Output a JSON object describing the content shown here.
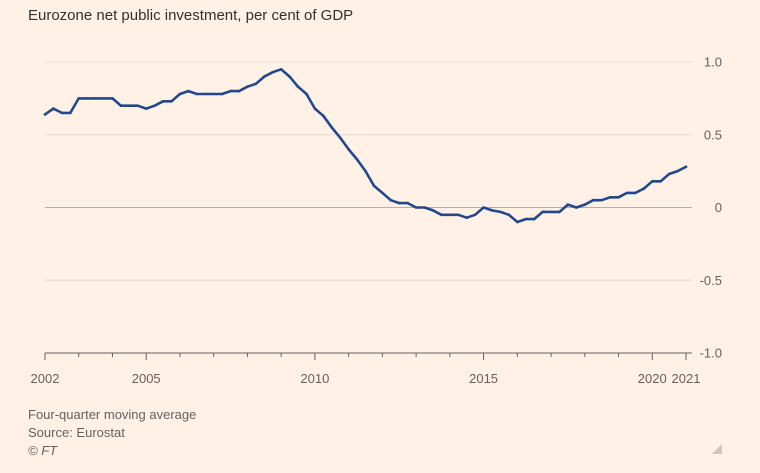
{
  "chart_data": {
    "type": "line",
    "title": "Eurozone net public investment, per cent of GDP",
    "xlabel": "",
    "ylabel": "",
    "xlim": [
      2002,
      2021
    ],
    "ylim": [
      -1.0,
      1.0
    ],
    "grid": true,
    "y_ticks": [
      {
        "value": 1.0,
        "label": "1.0"
      },
      {
        "value": 0.5,
        "label": "0.5"
      },
      {
        "value": 0,
        "label": "0"
      },
      {
        "value": -0.5,
        "label": "-0.5"
      },
      {
        "value": -1.0,
        "label": "-1.0"
      }
    ],
    "x_ticks": [
      {
        "value": 2002,
        "label": "2002"
      },
      {
        "value": 2005,
        "label": "2005"
      },
      {
        "value": 2010,
        "label": "2010"
      },
      {
        "value": 2015,
        "label": "2015"
      },
      {
        "value": 2020,
        "label": "2020"
      },
      {
        "value": 2021,
        "label": "2021"
      }
    ],
    "series": [
      {
        "color": "#23478e",
        "x": [
          2002.0,
          2002.25,
          2002.5,
          2002.75,
          2003.0,
          2003.25,
          2003.5,
          2003.75,
          2004.0,
          2004.25,
          2004.5,
          2004.75,
          2005.0,
          2005.25,
          2005.5,
          2005.75,
          2006.0,
          2006.25,
          2006.5,
          2006.75,
          2007.0,
          2007.25,
          2007.5,
          2007.75,
          2008.0,
          2008.25,
          2008.5,
          2008.75,
          2009.0,
          2009.25,
          2009.5,
          2009.75,
          2010.0,
          2010.25,
          2010.5,
          2010.75,
          2011.0,
          2011.25,
          2011.5,
          2011.75,
          2012.0,
          2012.25,
          2012.5,
          2012.75,
          2013.0,
          2013.25,
          2013.5,
          2013.75,
          2014.0,
          2014.25,
          2014.5,
          2014.75,
          2015.0,
          2015.25,
          2015.5,
          2015.75,
          2016.0,
          2016.25,
          2016.5,
          2016.75,
          2017.0,
          2017.25,
          2017.5,
          2017.75,
          2018.0,
          2018.25,
          2018.5,
          2018.75,
          2019.0,
          2019.25,
          2019.5,
          2019.75,
          2020.0,
          2020.25,
          2020.5,
          2020.75,
          2021.0
        ],
        "values": [
          0.64,
          0.68,
          0.65,
          0.65,
          0.75,
          0.75,
          0.75,
          0.75,
          0.75,
          0.7,
          0.7,
          0.7,
          0.68,
          0.7,
          0.73,
          0.73,
          0.78,
          0.8,
          0.78,
          0.78,
          0.78,
          0.78,
          0.8,
          0.8,
          0.83,
          0.85,
          0.9,
          0.93,
          0.95,
          0.9,
          0.83,
          0.78,
          0.68,
          0.63,
          0.55,
          0.48,
          0.4,
          0.33,
          0.25,
          0.15,
          0.1,
          0.05,
          0.03,
          0.03,
          0.0,
          0.0,
          -0.02,
          -0.05,
          -0.05,
          -0.05,
          -0.07,
          -0.05,
          0.0,
          -0.02,
          -0.03,
          -0.05,
          -0.1,
          -0.08,
          -0.08,
          -0.03,
          -0.03,
          -0.03,
          0.02,
          0.0,
          0.02,
          0.05,
          0.05,
          0.07,
          0.07,
          0.1,
          0.1,
          0.13,
          0.18,
          0.18,
          0.23,
          0.25,
          0.28
        ]
      }
    ]
  },
  "footer": {
    "note": "Four-quarter moving average",
    "source": "Source: Eurostat",
    "credit": "© FT"
  }
}
